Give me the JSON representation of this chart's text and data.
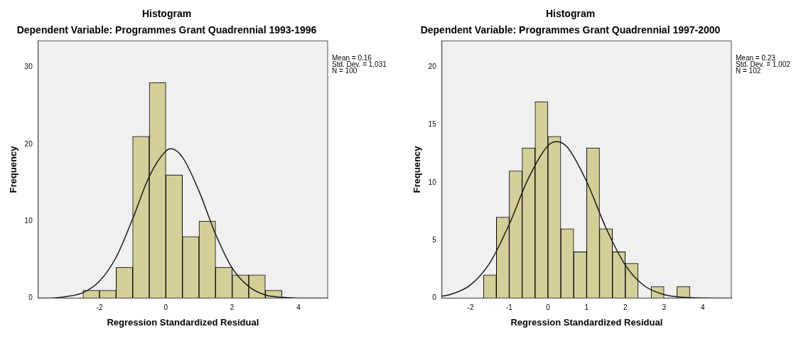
{
  "chart_data": [
    {
      "type": "histogram",
      "title": "Histogram",
      "subtitle": "Dependent Variable: Programmes Grant Quadrennial 1993-1996",
      "xlabel": "Regression Standardized Residual",
      "ylabel": "Frequency",
      "bins": [
        -2.5,
        -2,
        -1.5,
        -1,
        -0.5,
        0,
        0.5,
        1,
        1.5,
        2,
        2.5,
        3,
        3.5
      ],
      "values": [
        1,
        1,
        4,
        21,
        28,
        16,
        8,
        10,
        4,
        3,
        3,
        1
      ],
      "color": "#d4cf98",
      "series": [
        {
          "type": "line",
          "color": "#1a1a1a",
          "x": [
            -3.85,
            -3.5,
            -3,
            -2.5,
            -2,
            -1.5,
            -1,
            -0.5,
            0,
            0.16,
            0.5,
            1,
            1.5,
            2,
            2.5,
            3,
            3.5,
            4,
            4.5,
            4.88
          ],
          "values": [
            0.0,
            0.0,
            0.2,
            0.7,
            2.2,
            5.3,
            10.3,
            15.8,
            19.1,
            19.4,
            18.3,
            13.9,
            8.3,
            3.9,
            1.5,
            0.4,
            0.1,
            0.0,
            0.0,
            0.0
          ]
        }
      ],
      "xlim": [
        -3.85,
        4.88
      ],
      "ylim": [
        0,
        33.4
      ],
      "xticks": [
        -2,
        0,
        2,
        4
      ],
      "yticks": [
        0,
        10,
        20,
        30
      ],
      "annotations": [
        "Mean = 0.16",
        "Std. Dev. = 1.031",
        "N = 100"
      ]
    },
    {
      "type": "histogram",
      "title": "Histogram",
      "subtitle": "Dependent Variable: Programmes Grant Quadrennial 1997-2000",
      "xlabel": "Regression Standardized Residual",
      "ylabel": "Frequency",
      "bins": [
        -1.667,
        -1.333,
        -1,
        -0.667,
        -0.333,
        0,
        0.333,
        0.667,
        1,
        1.333,
        1.667,
        2,
        2.333,
        2.667,
        3,
        3.333,
        3.667
      ],
      "values": [
        2,
        7,
        11,
        13,
        17,
        14,
        6,
        4,
        13,
        6,
        4,
        3,
        0,
        1,
        0,
        1
      ],
      "color": "#d4cf98",
      "series": [
        {
          "type": "line",
          "color": "#1a1a1a",
          "x": [
            -2.74,
            -2.5,
            -2,
            -1.5,
            -1,
            -0.5,
            0,
            0.23,
            0.5,
            1,
            1.5,
            2,
            2.5,
            3,
            3.5,
            4,
            4.5,
            4.74
          ],
          "values": [
            0.17,
            0.33,
            1.14,
            3.05,
            6.38,
            10.39,
            13.19,
            13.54,
            13.06,
            10.08,
            6.07,
            2.85,
            1.04,
            0.3,
            0.07,
            0.01,
            0.0,
            0.0
          ]
        }
      ],
      "xlim": [
        -2.74,
        4.74
      ],
      "ylim": [
        0,
        22.25
      ],
      "xticks": [
        -2,
        -1,
        0,
        1,
        2,
        3,
        4
      ],
      "yticks": [
        0,
        5,
        10,
        15,
        20
      ],
      "annotations": [
        "Mean = 0.23",
        "Std. Dev. = 1.002",
        "N = 102"
      ]
    }
  ]
}
